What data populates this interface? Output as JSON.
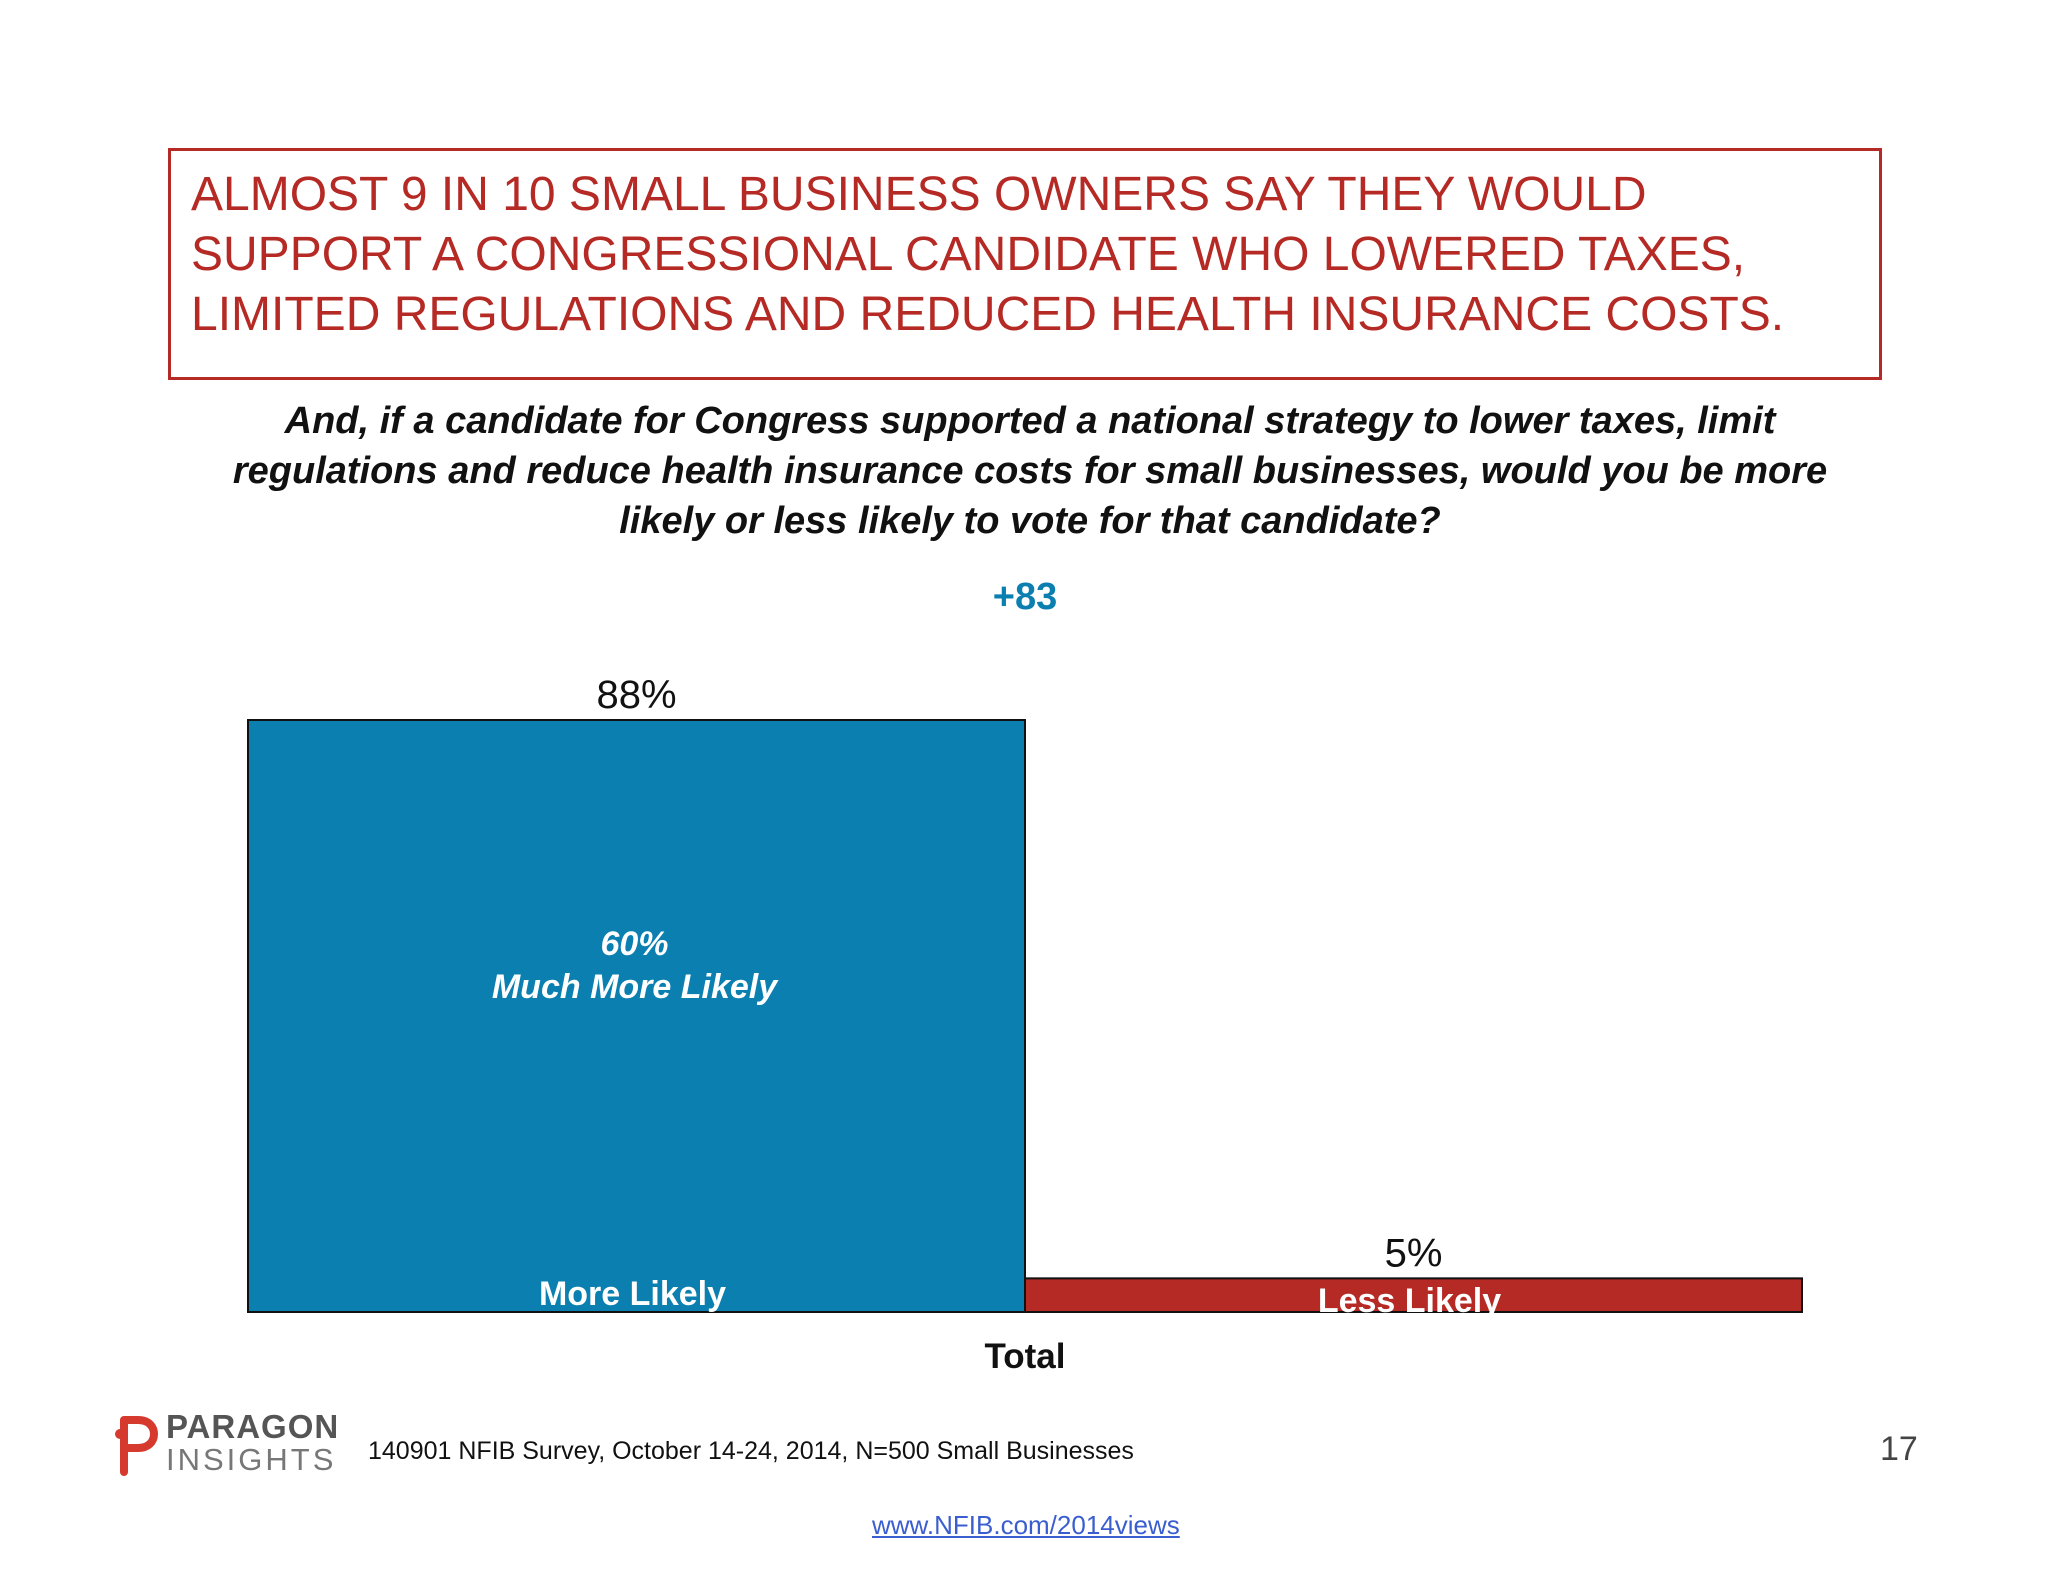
{
  "headline": "ALMOST 9 IN 10 SMALL BUSINESS OWNERS SAY THEY WOULD SUPPORT A CONGRESSIONAL CANDIDATE WHO LOWERED TAXES, LIMITED REGULATIONS AND REDUCED HEALTH INSURANCE COSTS.",
  "question": "And, if a candidate for Congress supported a national strategy to lower taxes, limit regulations and reduce health insurance costs for small businesses, would you be more likely or less likely to vote for that candidate?",
  "net_label": "+83",
  "colors": {
    "more_likely": "#0a7fb0",
    "less_likely": "#b52a25",
    "headline": "#b52a25",
    "net": "#0a7fb0"
  },
  "chart_data": {
    "type": "bar",
    "categories": [
      "Total"
    ],
    "xlabel": "Total",
    "ylim": [
      0,
      100
    ],
    "bars": [
      {
        "name": "More Likely",
        "value": 88,
        "value_label": "88%",
        "inner_value_label": "60%",
        "inner_text": "Much More Likely"
      },
      {
        "name": "Less Likely",
        "value": 5,
        "value_label": "5%"
      }
    ]
  },
  "footer": {
    "logo_top": "PARAGON",
    "logo_bottom": "INSIGHTS",
    "source": "140901 NFIB Survey, October 14-24, 2014, N=500 Small Businesses",
    "page_number": "17",
    "link": "www.NFIB.com/2014views"
  }
}
